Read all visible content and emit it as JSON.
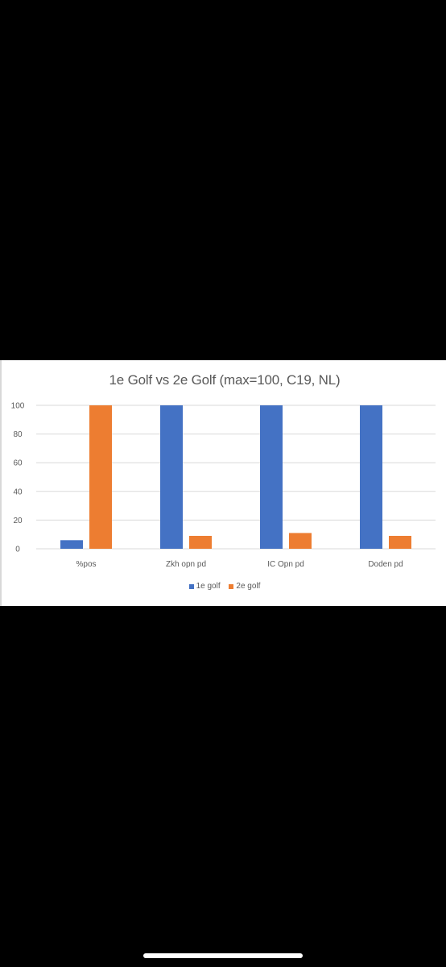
{
  "chart_data": {
    "type": "bar",
    "title": "1e Golf vs 2e Golf (max=100, C19, NL)",
    "categories": [
      "%pos",
      "Zkh opn pd",
      "IC Opn pd",
      "Doden pd"
    ],
    "series": [
      {
        "name": "1e golf",
        "values": [
          6,
          100,
          100,
          100
        ],
        "color": "#4472c4"
      },
      {
        "name": "2e golf",
        "values": [
          100,
          9,
          11,
          9
        ],
        "color": "#ed7d31"
      }
    ],
    "ylim": [
      0,
      100
    ],
    "yticks": [
      0,
      20,
      40,
      60,
      80,
      100
    ],
    "grid": true,
    "legend_position": "bottom",
    "xlabel": "",
    "ylabel": ""
  },
  "colors": {
    "background": "#000000",
    "card": "#ffffff",
    "gridline": "#d9d9d9",
    "text": "#595959"
  }
}
